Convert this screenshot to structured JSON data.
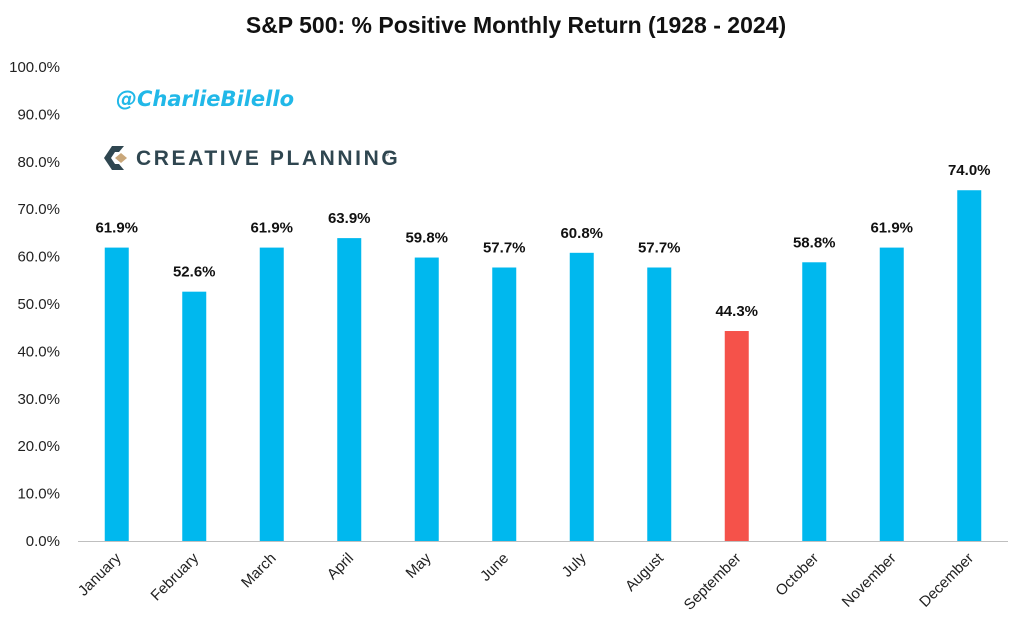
{
  "chart_data": {
    "type": "bar",
    "title": "S&P 500: % Positive Monthly Return (1928 - 2024)",
    "categories": [
      "January",
      "February",
      "March",
      "April",
      "May",
      "June",
      "July",
      "August",
      "September",
      "October",
      "November",
      "December"
    ],
    "values": [
      61.9,
      52.6,
      61.9,
      63.9,
      59.8,
      57.7,
      60.8,
      57.7,
      44.3,
      58.8,
      61.9,
      74.0
    ],
    "data_labels": [
      "61.9%",
      "52.6%",
      "61.9%",
      "63.9%",
      "59.8%",
      "57.7%",
      "60.8%",
      "57.7%",
      "44.3%",
      "58.8%",
      "61.9%",
      "74.0%"
    ],
    "xlabel": "",
    "ylabel": "",
    "ylim": [
      0,
      100
    ],
    "yticks": [
      "0.0%",
      "10.0%",
      "20.0%",
      "30.0%",
      "40.0%",
      "50.0%",
      "60.0%",
      "70.0%",
      "80.0%",
      "90.0%",
      "100.0%"
    ],
    "grid": false,
    "legend": "none",
    "colors": {
      "default": "#00b8ee",
      "highlight": "#f5524a",
      "highlight_category": "September"
    }
  },
  "watermark": {
    "handle": "@CharlieBilello",
    "handle_color": "#21b8e8",
    "brand": "CREATIVE PLANNING",
    "brand_color": "#2f4650",
    "logo_accent": "#c9a77a",
    "logo_icon": "creative-planning-logo-icon"
  }
}
